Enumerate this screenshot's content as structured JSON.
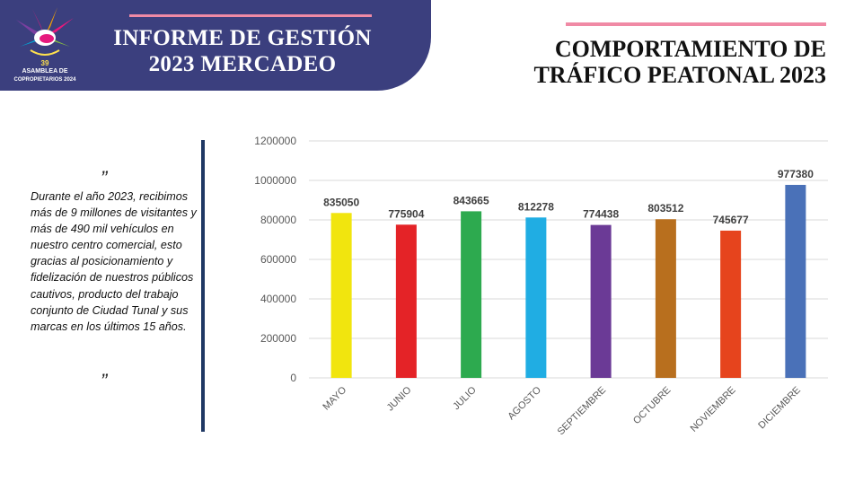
{
  "header": {
    "title_line1": "INFORME DE GESTIÓN",
    "title_line2": "2023 MERCADEO",
    "logo": {
      "number": "39",
      "line1": "ASAMBLEA DE",
      "line2": "COPROPIETARIOS",
      "year": "2024"
    }
  },
  "slide_title": {
    "line1": "COMPORTAMIENTO DE",
    "line2": "TRÁFICO PEATONAL 2023"
  },
  "quote": {
    "open": "”",
    "text": "Durante el año 2023, recibimos más de 9 millones de visitantes y más de 490 mil vehículos en nuestro centro comercial, esto gracias al posicionamiento y fidelización de nuestros públicos cautivos, producto del trabajo conjunto de Ciudad Tunal y sus marcas en los últimos 15 años.",
    "close": "”"
  },
  "colors": {
    "banner": "#3b3f7e",
    "accent_line": "#f08aa5",
    "quote_bar": "#1f3864"
  },
  "chart_data": {
    "type": "bar",
    "title": "",
    "xlabel": "",
    "ylabel": "",
    "categories": [
      "MAYO",
      "JUNIO",
      "JULIO",
      "AGOSTO",
      "SEPTIEMBRE",
      "OCTUBRE",
      "NOVIEMBRE",
      "DICIEMBRE"
    ],
    "values": [
      835050,
      775904,
      843665,
      812278,
      774438,
      803512,
      745677,
      977380
    ],
    "bar_colors": [
      "#f1e50e",
      "#e42327",
      "#2daa4f",
      "#20ade3",
      "#6b3a96",
      "#b86f1e",
      "#e6441d",
      "#4a71b8"
    ],
    "ylim": [
      0,
      1200000
    ],
    "yticks": [
      0,
      200000,
      400000,
      600000,
      800000,
      1000000,
      1200000
    ],
    "grid": true,
    "legend": "none",
    "data_labels": true
  }
}
